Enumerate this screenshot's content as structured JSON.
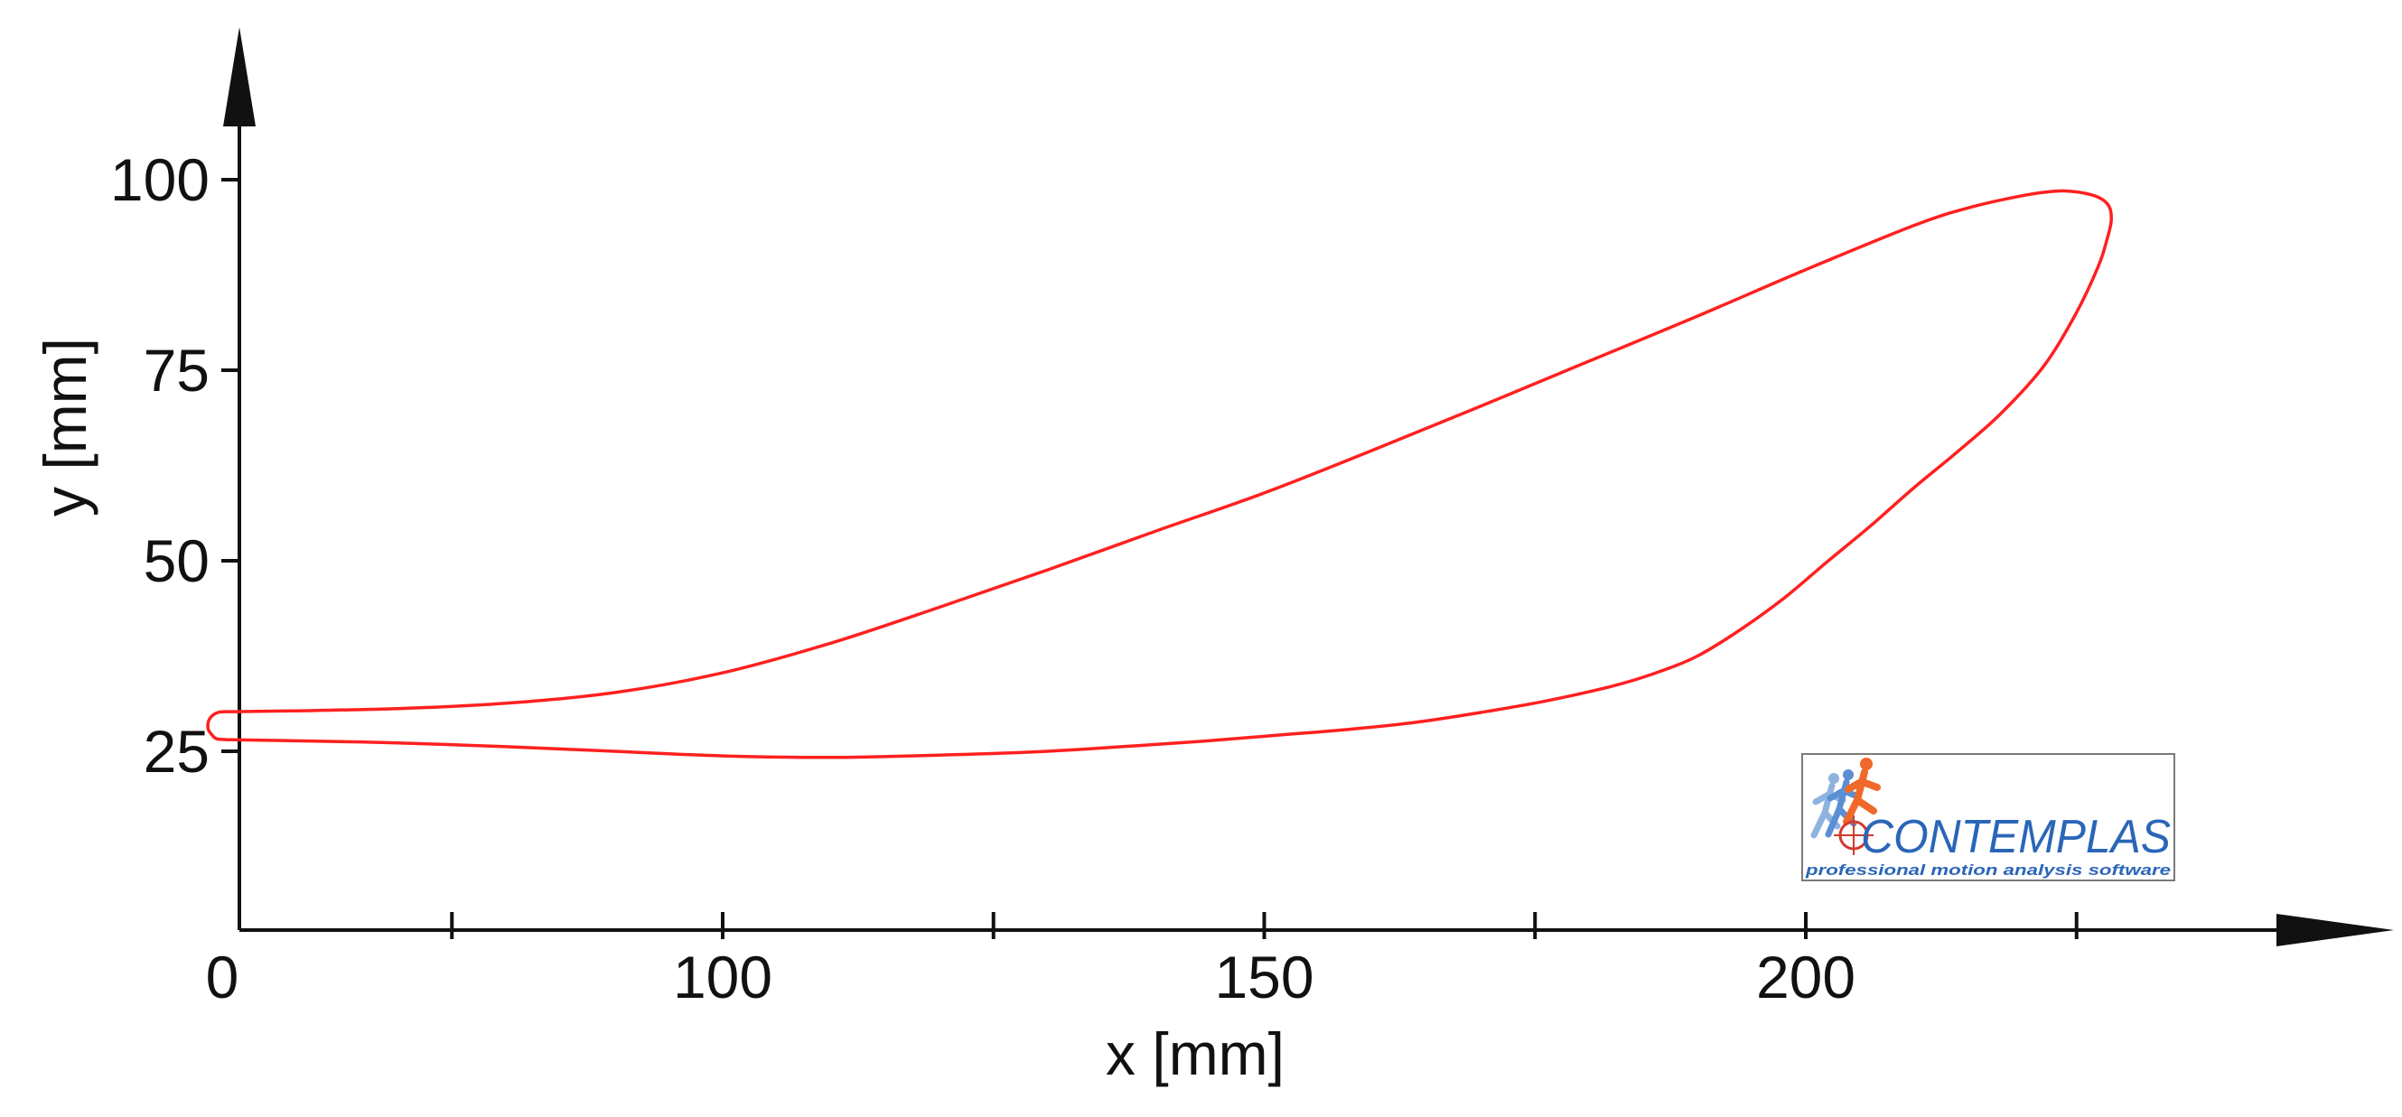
{
  "chart_data": {
    "type": "line",
    "xlabel": "x [mm]",
    "ylabel": "y [mm]",
    "xticks": [
      {
        "value": 0,
        "label": "0"
      },
      {
        "value": 75,
        "label": ""
      },
      {
        "value": 100,
        "label": "100"
      },
      {
        "value": 125,
        "label": ""
      },
      {
        "value": 150,
        "label": "150"
      },
      {
        "value": 175,
        "label": ""
      },
      {
        "value": 200,
        "label": "200"
      },
      {
        "value": 225,
        "label": ""
      }
    ],
    "yticks": [
      {
        "value": 25,
        "label": "25"
      },
      {
        "value": 50,
        "label": "50"
      },
      {
        "value": 75,
        "label": "75"
      },
      {
        "value": 100,
        "label": "100"
      }
    ],
    "grid": false,
    "series": [
      {
        "color": "#ff2020",
        "closed": true,
        "x": [
          53,
          52.5,
          52.6,
          53.4,
          55,
          60,
          70,
          80,
          90,
          100,
          110,
          120,
          130,
          140,
          150,
          160,
          170,
          180,
          190,
          200,
          210,
          215,
          220,
          223,
          225,
          227,
          228,
          228.2,
          227.8,
          227,
          225,
          222,
          218,
          214,
          210,
          206,
          202,
          198,
          194,
          190,
          186,
          182,
          176,
          170,
          164,
          158,
          152,
          146,
          140,
          130,
          120,
          110,
          100,
          90,
          80,
          70,
          60,
          55,
          53.4,
          53
        ],
        "y": [
          26.9,
          27.9,
          29.2,
          30.1,
          30.2,
          30.3,
          30.6,
          31.3,
          32.7,
          35.3,
          39.2,
          43.9,
          48.8,
          53.9,
          58.9,
          64.5,
          70.3,
          76.2,
          82.1,
          88.2,
          94.0,
          96.3,
          97.9,
          98.5,
          98.4,
          97.7,
          96.5,
          94.6,
          92.1,
          88.6,
          82.6,
          75.6,
          69.3,
          64.3,
          59.6,
          54.6,
          49.9,
          45.1,
          41.0,
          37.5,
          35.2,
          33.5,
          31.6,
          30.1,
          28.8,
          27.9,
          27.2,
          26.5,
          25.9,
          25.0,
          24.5,
          24.2,
          24.4,
          25.0,
          25.6,
          26.1,
          26.4,
          26.5,
          26.6,
          26.9
        ]
      }
    ]
  },
  "logo": {
    "name": "CONTEMPLAS",
    "tagline": "professional motion analysis software"
  }
}
